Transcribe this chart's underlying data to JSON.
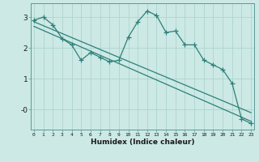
{
  "xlabel": "Humidex (Indice chaleur)",
  "x_values": [
    0,
    1,
    2,
    3,
    4,
    5,
    6,
    7,
    8,
    9,
    10,
    11,
    12,
    13,
    14,
    15,
    16,
    17,
    18,
    19,
    20,
    21,
    22,
    23
  ],
  "line1_y": [
    2.9,
    3.0,
    2.75,
    2.3,
    2.1,
    1.6,
    1.85,
    1.7,
    1.55,
    1.6,
    2.35,
    2.85,
    3.2,
    3.05,
    2.5,
    2.55,
    2.1,
    2.1,
    1.6,
    1.45,
    1.3,
    0.85,
    -0.3,
    -0.45
  ],
  "trend1_x": [
    0,
    23
  ],
  "trend1_y": [
    2.85,
    -0.1
  ],
  "trend2_x": [
    0,
    23
  ],
  "trend2_y": [
    2.7,
    -0.38
  ],
  "bg_color": "#cce9e5",
  "line_color": "#2d7f78",
  "grid_color": "#aed4cf",
  "ylim": [
    -0.65,
    3.45
  ],
  "xlim": [
    -0.3,
    23.3
  ],
  "ytick_positions": [
    3,
    2,
    1,
    0
  ],
  "ytick_labels": [
    "3",
    "2",
    "1",
    "-0"
  ],
  "xtick_labels": [
    "0",
    "1",
    "2",
    "3",
    "4",
    "5",
    "6",
    "7",
    "8",
    "9",
    "10",
    "11",
    "12",
    "13",
    "14",
    "15",
    "16",
    "17",
    "18",
    "19",
    "20",
    "21",
    "22",
    "23"
  ]
}
